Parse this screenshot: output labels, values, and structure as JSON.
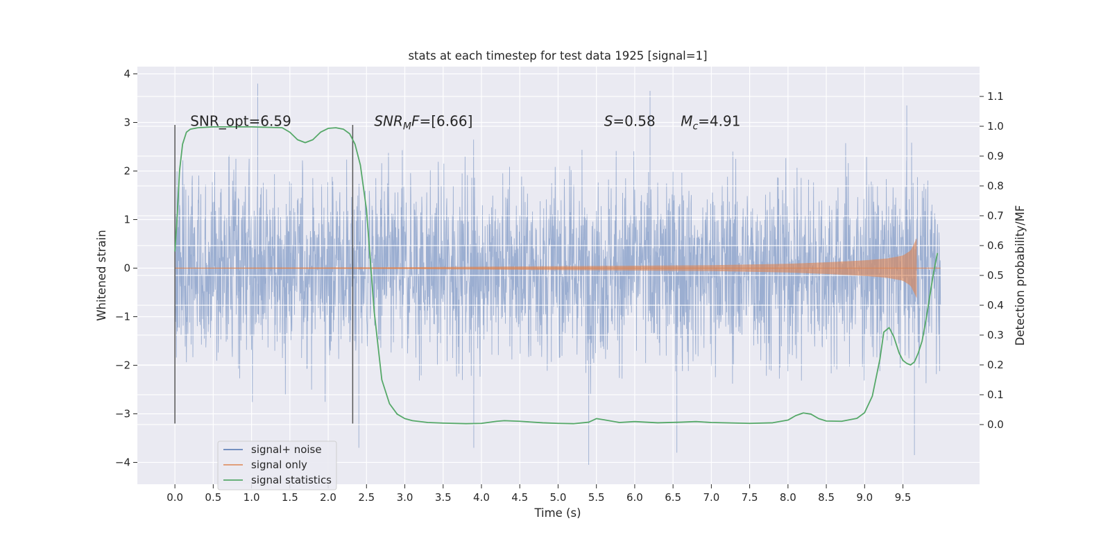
{
  "chart_data": {
    "type": "line",
    "title": "stats at each timestep for test data 1925 [signal=1]",
    "xlabel": "Time (s)",
    "ylabel_left": "Whitened strain",
    "ylabel_right": "Detection probability/MF",
    "xlim": [
      -0.49,
      10.5
    ],
    "ylim_left": [
      -4.45,
      4.15
    ],
    "ylim_right": [
      -0.2,
      1.2
    ],
    "xticks": [
      0.0,
      0.5,
      1.0,
      1.5,
      2.0,
      2.5,
      3.0,
      3.5,
      4.0,
      4.5,
      5.0,
      5.5,
      6.0,
      6.5,
      7.0,
      7.5,
      8.0,
      8.5,
      9.0,
      9.5
    ],
    "xtick_labels": [
      "0.0",
      "0.5",
      "1.0",
      "1.5",
      "2.0",
      "2.5",
      "3.0",
      "3.5",
      "4.0",
      "4.5",
      "5.0",
      "5.5",
      "6.0",
      "6.5",
      "7.0",
      "7.5",
      "8.0",
      "8.5",
      "9.0",
      "9.5"
    ],
    "yticks_left": [
      4,
      3,
      2,
      1,
      0,
      -1,
      -2,
      -3,
      -4
    ],
    "ytick_labels_left": [
      "4",
      "3",
      "2",
      "1",
      "0",
      "−1",
      "−2",
      "−3",
      "−4"
    ],
    "yticks_right": [
      1.1,
      1.0,
      0.9,
      0.8,
      0.7,
      0.6,
      0.5,
      0.4,
      0.3,
      0.2,
      0.1,
      0.0
    ],
    "ytick_labels_right": [
      "1.1",
      "1.0",
      "0.9",
      "0.8",
      "0.7",
      "0.6",
      "0.5",
      "0.4",
      "0.3",
      "0.2",
      "0.1",
      "0.0"
    ],
    "grid": true,
    "legend_position": "lower-left",
    "series": [
      {
        "name": "signal+ noise",
        "axis": "left",
        "color": "#4c72b0",
        "x_range": [
          0.0,
          9.99
        ],
        "typical_envelope": [
          -1.9,
          1.7
        ],
        "extremes": [
          {
            "x": 1.08,
            "y": 3.8
          },
          {
            "x": 6.2,
            "y": 3.65
          },
          {
            "x": 9.55,
            "y": 3.35
          },
          {
            "x": 5.4,
            "y": -4.05
          },
          {
            "x": 9.65,
            "y": -3.85
          },
          {
            "x": 6.55,
            "y": -3.8
          },
          {
            "x": 3.9,
            "y": -3.7
          },
          {
            "x": 2.4,
            "y": -3.7
          }
        ]
      },
      {
        "name": "signal only",
        "axis": "left",
        "color": "#dd8452",
        "x": [
          0.0,
          1.0,
          2.0,
          3.0,
          4.0,
          5.0,
          6.0,
          7.0,
          8.0,
          8.5,
          9.0,
          9.3,
          9.5,
          9.6,
          9.65,
          9.68
        ],
        "amplitude": [
          0.005,
          0.01,
          0.015,
          0.02,
          0.03,
          0.04,
          0.05,
          0.06,
          0.09,
          0.12,
          0.16,
          0.2,
          0.26,
          0.36,
          0.52,
          0.62
        ]
      },
      {
        "name": "signal statistics",
        "axis": "right",
        "color": "#55a868",
        "x": [
          0.0,
          0.03,
          0.06,
          0.1,
          0.15,
          0.2,
          0.3,
          0.5,
          1.0,
          1.4,
          1.5,
          1.6,
          1.7,
          1.8,
          1.9,
          2.0,
          2.1,
          2.2,
          2.28,
          2.35,
          2.42,
          2.5,
          2.6,
          2.7,
          2.8,
          2.9,
          3.0,
          3.1,
          3.3,
          3.5,
          3.8,
          4.0,
          4.2,
          4.3,
          4.5,
          4.8,
          5.0,
          5.2,
          5.4,
          5.5,
          5.6,
          5.8,
          6.0,
          6.3,
          6.6,
          6.8,
          7.0,
          7.5,
          7.8,
          8.0,
          8.1,
          8.2,
          8.3,
          8.4,
          8.5,
          8.7,
          8.9,
          9.0,
          9.1,
          9.2,
          9.25,
          9.32,
          9.38,
          9.45,
          9.5,
          9.55,
          9.6,
          9.65,
          9.7,
          9.75,
          9.8,
          9.85,
          9.9,
          9.95
        ],
        "values": [
          0.58,
          0.7,
          0.85,
          0.94,
          0.98,
          0.99,
          0.995,
          0.998,
          0.998,
          0.995,
          0.98,
          0.955,
          0.945,
          0.955,
          0.98,
          0.993,
          0.995,
          0.99,
          0.975,
          0.94,
          0.87,
          0.72,
          0.38,
          0.15,
          0.07,
          0.035,
          0.02,
          0.013,
          0.007,
          0.005,
          0.003,
          0.004,
          0.011,
          0.013,
          0.011,
          0.006,
          0.004,
          0.003,
          0.008,
          0.02,
          0.016,
          0.007,
          0.01,
          0.006,
          0.008,
          0.01,
          0.007,
          0.004,
          0.006,
          0.015,
          0.03,
          0.039,
          0.035,
          0.02,
          0.012,
          0.011,
          0.021,
          0.04,
          0.095,
          0.22,
          0.31,
          0.325,
          0.295,
          0.24,
          0.215,
          0.205,
          0.2,
          0.21,
          0.24,
          0.28,
          0.35,
          0.43,
          0.51,
          0.575
        ]
      }
    ],
    "vertical_lines": [
      {
        "x": 0.0,
        "y_range": [
          -3.2,
          2.95
        ],
        "color": "#555555"
      },
      {
        "x": 2.32,
        "y_range": [
          -3.2,
          2.95
        ],
        "color": "#555555"
      }
    ],
    "annotations": [
      {
        "x": 0.2,
        "y": 3.0,
        "text": "SNR_opt=6.59"
      },
      {
        "x": 2.6,
        "y": 3.0,
        "italic": "SNR",
        "sub": "M",
        "italic2": "F",
        "rest": "=[6.66]"
      },
      {
        "x": 5.6,
        "y": 3.0,
        "italic": "S",
        "rest": "=0.58"
      },
      {
        "x": 6.6,
        "y": 3.0,
        "italic": "M",
        "sub": "c",
        "rest": "=4.91"
      }
    ]
  }
}
